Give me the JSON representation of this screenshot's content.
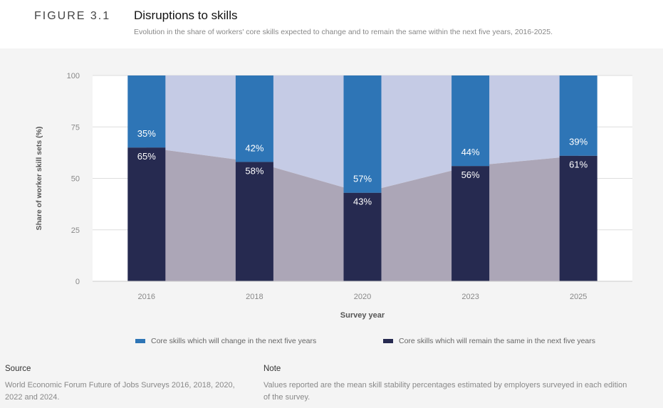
{
  "header": {
    "figure_label": "FIGURE 3.1",
    "title": "Disruptions to skills",
    "subtitle": "Evolution in the share of workers' core skills expected to change and to remain the same within the next five years, 2016-2025."
  },
  "chart_data": {
    "type": "bar",
    "stacked": true,
    "categories": [
      "2016",
      "2018",
      "2020",
      "2023",
      "2025"
    ],
    "series": [
      {
        "name": "Core skills which will change in the next five years",
        "values": [
          35,
          42,
          57,
          44,
          39
        ],
        "labels": [
          "35%",
          "42%",
          "57%",
          "44%",
          "39%"
        ],
        "color": "#2e75b6"
      },
      {
        "name": "Core skills which will remain the same in the next five years",
        "values": [
          65,
          58,
          43,
          56,
          61
        ],
        "labels": [
          "65%",
          "58%",
          "43%",
          "56%",
          "61%"
        ],
        "color": "#262a50"
      }
    ],
    "xlabel": "Survey year",
    "ylabel": "Share of worker skill sets (%)",
    "ylim": [
      0,
      100
    ],
    "yticks": [
      "0",
      "25",
      "50",
      "75",
      "100"
    ],
    "grid": true,
    "legend_position": "bottom"
  },
  "footer": {
    "source_heading": "Source",
    "source_text": "World Economic Forum Future of Jobs Surveys 2016, 2018, 2020, 2022 and 2024.",
    "note_heading": "Note",
    "note_text": "Values reported are the mean skill stability percentages estimated by employers surveyed in each edition of the survey."
  }
}
